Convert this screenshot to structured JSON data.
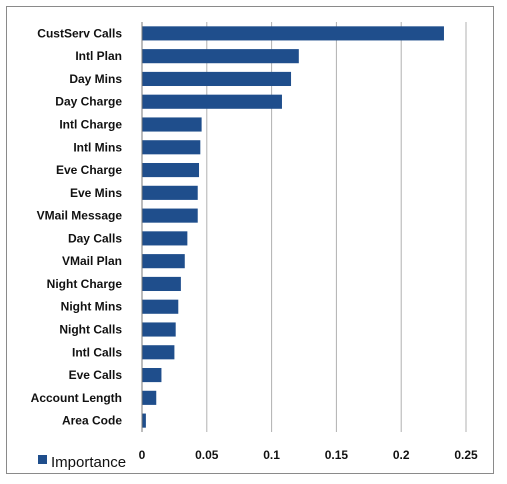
{
  "chart_data": {
    "type": "bar",
    "orientation": "horizontal",
    "categories": [
      "CustServ Calls",
      "Intl Plan",
      "Day Mins",
      "Day Charge",
      "Intl Charge",
      "Intl Mins",
      "Eve Charge",
      "Eve Mins",
      "VMail Message",
      "Day Calls",
      "VMail Plan",
      "Night Charge",
      "Night Mins",
      "Night Calls",
      "Intl Calls",
      "Eve Calls",
      "Account Length",
      "Area Code"
    ],
    "series": [
      {
        "name": "Importance",
        "values": [
          0.233,
          0.121,
          0.115,
          0.108,
          0.046,
          0.045,
          0.044,
          0.043,
          0.043,
          0.035,
          0.033,
          0.03,
          0.028,
          0.026,
          0.025,
          0.015,
          0.011,
          0.003
        ]
      }
    ],
    "xlim": [
      0,
      0.25
    ],
    "xticks": [
      "0",
      "0.05",
      "0.1",
      "0.15",
      "0.2",
      "0.25"
    ],
    "grid": "vertical",
    "legend": "bottom-left",
    "colors": {
      "bar": "#1f4e8c",
      "grid": "#b0b0b0",
      "axis": "#7a7a7a"
    }
  }
}
